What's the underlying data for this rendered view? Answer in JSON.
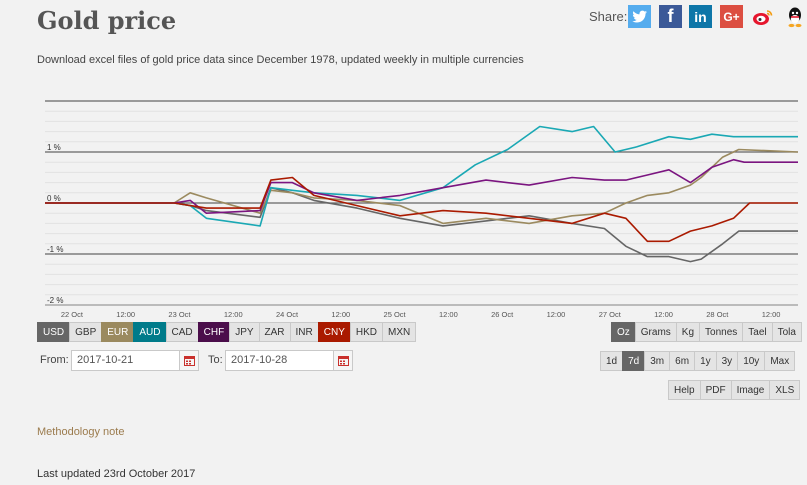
{
  "header": {
    "title": "Gold price",
    "subtitle": "Download excel files of gold price data since December 1978, updated weekly in multiple currencies",
    "share_label": "Share:",
    "social": [
      {
        "name": "twitter-icon",
        "glyph": "🐦"
      },
      {
        "name": "facebook-icon",
        "glyph": "f"
      },
      {
        "name": "linkedin-icon",
        "glyph": "in"
      },
      {
        "name": "google-plus-icon",
        "glyph": "G+"
      },
      {
        "name": "weibo-icon",
        "glyph": "微"
      },
      {
        "name": "qq-icon",
        "glyph": "企"
      }
    ]
  },
  "currencies": [
    {
      "label": "USD",
      "active": true,
      "color": "#666666"
    },
    {
      "label": "GBP",
      "active": false,
      "color": ""
    },
    {
      "label": "EUR",
      "active": true,
      "color": "#9b8a5f"
    },
    {
      "label": "AUD",
      "active": true,
      "color": "#007b8a"
    },
    {
      "label": "CAD",
      "active": false,
      "color": ""
    },
    {
      "label": "CHF",
      "active": true,
      "color": "#4b0e4b"
    },
    {
      "label": "JPY",
      "active": false,
      "color": ""
    },
    {
      "label": "ZAR",
      "active": false,
      "color": ""
    },
    {
      "label": "INR",
      "active": false,
      "color": ""
    },
    {
      "label": "CNY",
      "active": true,
      "color": "#aa1a00"
    },
    {
      "label": "HKD",
      "active": false,
      "color": ""
    },
    {
      "label": "MXN",
      "active": false,
      "color": ""
    }
  ],
  "units": [
    {
      "label": "Oz",
      "active": true
    },
    {
      "label": "Grams",
      "active": false
    },
    {
      "label": "Kg",
      "active": false
    },
    {
      "label": "Tonnes",
      "active": false
    },
    {
      "label": "Tael",
      "active": false
    },
    {
      "label": "Tola",
      "active": false
    }
  ],
  "ranges": [
    {
      "label": "1d",
      "active": false
    },
    {
      "label": "7d",
      "active": true
    },
    {
      "label": "3m",
      "active": false
    },
    {
      "label": "6m",
      "active": false
    },
    {
      "label": "1y",
      "active": false
    },
    {
      "label": "3y",
      "active": false
    },
    {
      "label": "10y",
      "active": false
    },
    {
      "label": "Max",
      "active": false
    }
  ],
  "exports": [
    "Help",
    "PDF",
    "Image",
    "XLS"
  ],
  "dates": {
    "from_label": "From:",
    "from_value": "2017-10-21",
    "to_label": "To:",
    "to_value": "2017-10-28"
  },
  "methodology_link": "Methodology note",
  "last_updated": "Last updated 23rd October 2017",
  "chart_data": {
    "type": "line",
    "title": "",
    "xlabel": "",
    "ylabel": "",
    "ylim": [
      -2,
      2
    ],
    "y_ticks": [
      {
        "value": 1,
        "label": "1 %"
      },
      {
        "value": 0,
        "label": "0 %"
      },
      {
        "value": -1,
        "label": "-1 %"
      },
      {
        "value": -2,
        "label": "-2 %"
      }
    ],
    "x_ticks": [
      "22 Oct",
      "12:00",
      "23 Oct",
      "12:00",
      "24 Oct",
      "12:00",
      "25 Oct",
      "12:00",
      "26 Oct",
      "12:00",
      "27 Oct",
      "12:00",
      "28 Oct",
      "12:00"
    ],
    "xlim": [
      0,
      7
    ],
    "grid": true,
    "legend": "none",
    "series": [
      {
        "name": "USD",
        "color": "#666666",
        "x": [
          0,
          1.2,
          1.35,
          1.5,
          2.0,
          2.1,
          2.3,
          2.5,
          2.9,
          3.3,
          3.7,
          4.1,
          4.5,
          4.9,
          5.2,
          5.4,
          5.6,
          5.8,
          6.0,
          6.1,
          6.3,
          6.45,
          7
        ],
        "y": [
          0,
          0,
          -0.05,
          -0.15,
          -0.28,
          0.3,
          0.2,
          0.05,
          -0.1,
          -0.3,
          -0.45,
          -0.35,
          -0.25,
          -0.4,
          -0.5,
          -0.85,
          -1.05,
          -1.05,
          -1.15,
          -1.1,
          -0.8,
          -0.55,
          -0.55
        ]
      },
      {
        "name": "EUR",
        "color": "#9b8a5f",
        "x": [
          0,
          1.2,
          1.35,
          1.5,
          2.0,
          2.1,
          2.3,
          2.5,
          2.9,
          3.3,
          3.7,
          4.1,
          4.5,
          4.9,
          5.2,
          5.4,
          5.6,
          5.8,
          6.0,
          6.1,
          6.3,
          6.45,
          7
        ],
        "y": [
          0,
          0,
          0.2,
          0.1,
          -0.2,
          0.25,
          0.2,
          0.1,
          0.05,
          -0.05,
          -0.4,
          -0.3,
          -0.4,
          -0.25,
          -0.2,
          0.0,
          0.15,
          0.2,
          0.35,
          0.5,
          0.9,
          1.05,
          1.0
        ]
      },
      {
        "name": "AUD",
        "color": "#1aa8b4",
        "x": [
          0,
          1.2,
          1.35,
          1.5,
          2.0,
          2.1,
          2.3,
          2.5,
          2.9,
          3.3,
          3.7,
          4.0,
          4.3,
          4.6,
          4.9,
          5.1,
          5.3,
          5.5,
          5.8,
          6.0,
          6.2,
          6.4,
          7
        ],
        "y": [
          0,
          0,
          -0.05,
          -0.3,
          -0.45,
          0.3,
          0.25,
          0.2,
          0.15,
          0.05,
          0.3,
          0.75,
          1.05,
          1.5,
          1.4,
          1.5,
          1.0,
          1.1,
          1.3,
          1.25,
          1.35,
          1.3,
          1.3
        ]
      },
      {
        "name": "CHF",
        "color": "#7b1580",
        "x": [
          0,
          1.2,
          1.35,
          1.5,
          2.0,
          2.1,
          2.3,
          2.5,
          2.9,
          3.3,
          3.7,
          4.1,
          4.5,
          4.9,
          5.2,
          5.4,
          5.6,
          5.8,
          6.0,
          6.2,
          6.4,
          6.5,
          7
        ],
        "y": [
          0,
          0,
          0.05,
          -0.2,
          -0.15,
          0.4,
          0.4,
          0.2,
          0.05,
          0.15,
          0.3,
          0.45,
          0.35,
          0.5,
          0.45,
          0.45,
          0.55,
          0.65,
          0.4,
          0.7,
          0.85,
          0.8,
          0.8
        ]
      },
      {
        "name": "CNY",
        "color": "#aa1a00",
        "x": [
          0,
          1.2,
          1.35,
          1.5,
          2.0,
          2.1,
          2.3,
          2.5,
          2.9,
          3.3,
          3.7,
          4.1,
          4.5,
          4.9,
          5.2,
          5.4,
          5.6,
          5.8,
          6.0,
          6.2,
          6.4,
          6.55,
          7
        ],
        "y": [
          0,
          0,
          -0.05,
          -0.1,
          -0.1,
          0.45,
          0.5,
          0.15,
          -0.05,
          -0.25,
          -0.15,
          -0.2,
          -0.3,
          -0.4,
          -0.2,
          -0.3,
          -0.75,
          -0.75,
          -0.55,
          -0.45,
          -0.3,
          0.0,
          0.0
        ]
      }
    ]
  }
}
